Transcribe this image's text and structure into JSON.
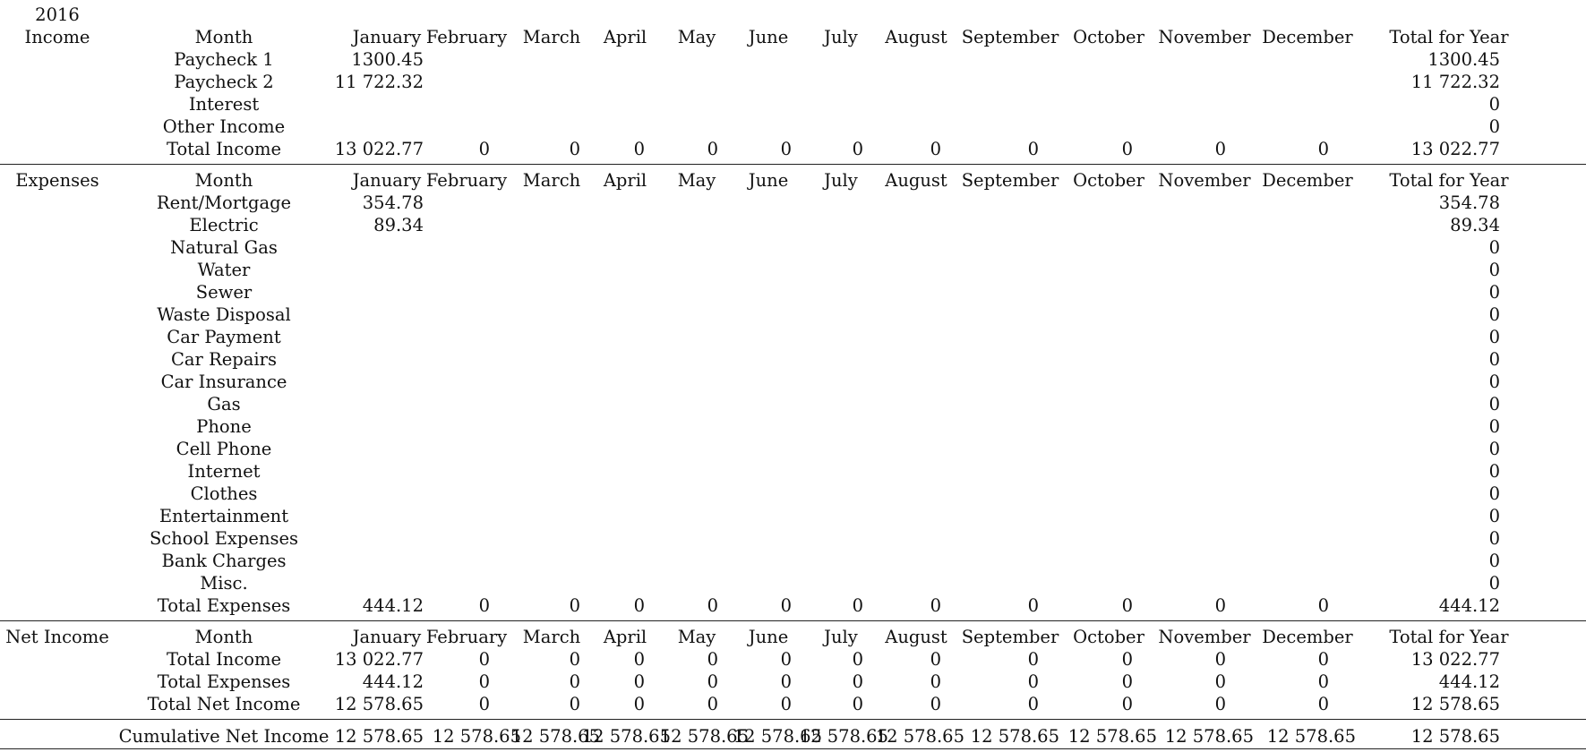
{
  "year": "2016",
  "months_header": [
    "January",
    "February",
    "March",
    "April",
    "May",
    "June",
    "July",
    "August",
    "September",
    "October",
    "November",
    "December"
  ],
  "month_col_label": "Month",
  "total_col_label": "Total for Year",
  "income": {
    "section_label": "Income",
    "rows": [
      {
        "label": "Paycheck 1",
        "values": [
          "1300.45",
          "",
          "",
          "",
          "",
          "",
          "",
          "",
          "",
          "",
          "",
          ""
        ],
        "total": "1300.45"
      },
      {
        "label": "Paycheck 2",
        "values": [
          "11 722.32",
          "",
          "",
          "",
          "",
          "",
          "",
          "",
          "",
          "",
          "",
          ""
        ],
        "total": "11 722.32"
      },
      {
        "label": "Interest",
        "values": [
          "",
          "",
          "",
          "",
          "",
          "",
          "",
          "",
          "",
          "",
          "",
          ""
        ],
        "total": "0"
      },
      {
        "label": "Other Income",
        "values": [
          "",
          "",
          "",
          "",
          "",
          "",
          "",
          "",
          "",
          "",
          "",
          ""
        ],
        "total": "0"
      },
      {
        "label": "Total Income",
        "values": [
          "13 022.77",
          "0",
          "0",
          "0",
          "0",
          "0",
          "0",
          "0",
          "0",
          "0",
          "0",
          "0"
        ],
        "total": "13 022.77"
      }
    ]
  },
  "expenses": {
    "section_label": "Expenses",
    "rows": [
      {
        "label": "Rent/Mortgage",
        "values": [
          "354.78",
          "",
          "",
          "",
          "",
          "",
          "",
          "",
          "",
          "",
          "",
          ""
        ],
        "total": "354.78"
      },
      {
        "label": "Electric",
        "values": [
          "89.34",
          "",
          "",
          "",
          "",
          "",
          "",
          "",
          "",
          "",
          "",
          ""
        ],
        "total": "89.34"
      },
      {
        "label": "Natural Gas",
        "values": [
          "",
          "",
          "",
          "",
          "",
          "",
          "",
          "",
          "",
          "",
          "",
          ""
        ],
        "total": "0"
      },
      {
        "label": "Water",
        "values": [
          "",
          "",
          "",
          "",
          "",
          "",
          "",
          "",
          "",
          "",
          "",
          ""
        ],
        "total": "0"
      },
      {
        "label": "Sewer",
        "values": [
          "",
          "",
          "",
          "",
          "",
          "",
          "",
          "",
          "",
          "",
          "",
          ""
        ],
        "total": "0"
      },
      {
        "label": "Waste Disposal",
        "values": [
          "",
          "",
          "",
          "",
          "",
          "",
          "",
          "",
          "",
          "",
          "",
          ""
        ],
        "total": "0"
      },
      {
        "label": "Car Payment",
        "values": [
          "",
          "",
          "",
          "",
          "",
          "",
          "",
          "",
          "",
          "",
          "",
          ""
        ],
        "total": "0"
      },
      {
        "label": "Car Repairs",
        "values": [
          "",
          "",
          "",
          "",
          "",
          "",
          "",
          "",
          "",
          "",
          "",
          ""
        ],
        "total": "0"
      },
      {
        "label": "Car Insurance",
        "values": [
          "",
          "",
          "",
          "",
          "",
          "",
          "",
          "",
          "",
          "",
          "",
          ""
        ],
        "total": "0"
      },
      {
        "label": "Gas",
        "values": [
          "",
          "",
          "",
          "",
          "",
          "",
          "",
          "",
          "",
          "",
          "",
          ""
        ],
        "total": "0"
      },
      {
        "label": "Phone",
        "values": [
          "",
          "",
          "",
          "",
          "",
          "",
          "",
          "",
          "",
          "",
          "",
          ""
        ],
        "total": "0"
      },
      {
        "label": "Cell Phone",
        "values": [
          "",
          "",
          "",
          "",
          "",
          "",
          "",
          "",
          "",
          "",
          "",
          ""
        ],
        "total": "0"
      },
      {
        "label": "Internet",
        "values": [
          "",
          "",
          "",
          "",
          "",
          "",
          "",
          "",
          "",
          "",
          "",
          ""
        ],
        "total": "0"
      },
      {
        "label": "Clothes",
        "values": [
          "",
          "",
          "",
          "",
          "",
          "",
          "",
          "",
          "",
          "",
          "",
          ""
        ],
        "total": "0"
      },
      {
        "label": "Entertainment",
        "values": [
          "",
          "",
          "",
          "",
          "",
          "",
          "",
          "",
          "",
          "",
          "",
          ""
        ],
        "total": "0"
      },
      {
        "label": "School Expenses",
        "values": [
          "",
          "",
          "",
          "",
          "",
          "",
          "",
          "",
          "",
          "",
          "",
          ""
        ],
        "total": "0"
      },
      {
        "label": "Bank Charges",
        "values": [
          "",
          "",
          "",
          "",
          "",
          "",
          "",
          "",
          "",
          "",
          "",
          ""
        ],
        "total": "0"
      },
      {
        "label": "Misc.",
        "values": [
          "",
          "",
          "",
          "",
          "",
          "",
          "",
          "",
          "",
          "",
          "",
          ""
        ],
        "total": "0"
      },
      {
        "label": "Total Expenses",
        "values": [
          "444.12",
          "0",
          "0",
          "0",
          "0",
          "0",
          "0",
          "0",
          "0",
          "0",
          "0",
          "0"
        ],
        "total": "444.12"
      }
    ]
  },
  "net": {
    "section_label": "Net Income",
    "rows": [
      {
        "label": "Total Income",
        "values": [
          "13 022.77",
          "0",
          "0",
          "0",
          "0",
          "0",
          "0",
          "0",
          "0",
          "0",
          "0",
          "0"
        ],
        "total": "13 022.77"
      },
      {
        "label": "Total Expenses",
        "values": [
          "444.12",
          "0",
          "0",
          "0",
          "0",
          "0",
          "0",
          "0",
          "0",
          "0",
          "0",
          "0"
        ],
        "total": "444.12"
      },
      {
        "label": "Total Net Income",
        "values": [
          "12 578.65",
          "0",
          "0",
          "0",
          "0",
          "0",
          "0",
          "0",
          "0",
          "0",
          "0",
          "0"
        ],
        "total": "12 578.65"
      }
    ]
  },
  "cumulative": {
    "label": "Cumulative Net Income",
    "values": [
      "12 578.65",
      "12 578.65",
      "12 578.65",
      "12 578.65",
      "12 578.65",
      "12 578.65",
      "12 578.65",
      "12 578.65",
      "12 578.65",
      "12 578.65",
      "12 578.65",
      "12 578.65"
    ],
    "total": "12 578.65"
  }
}
